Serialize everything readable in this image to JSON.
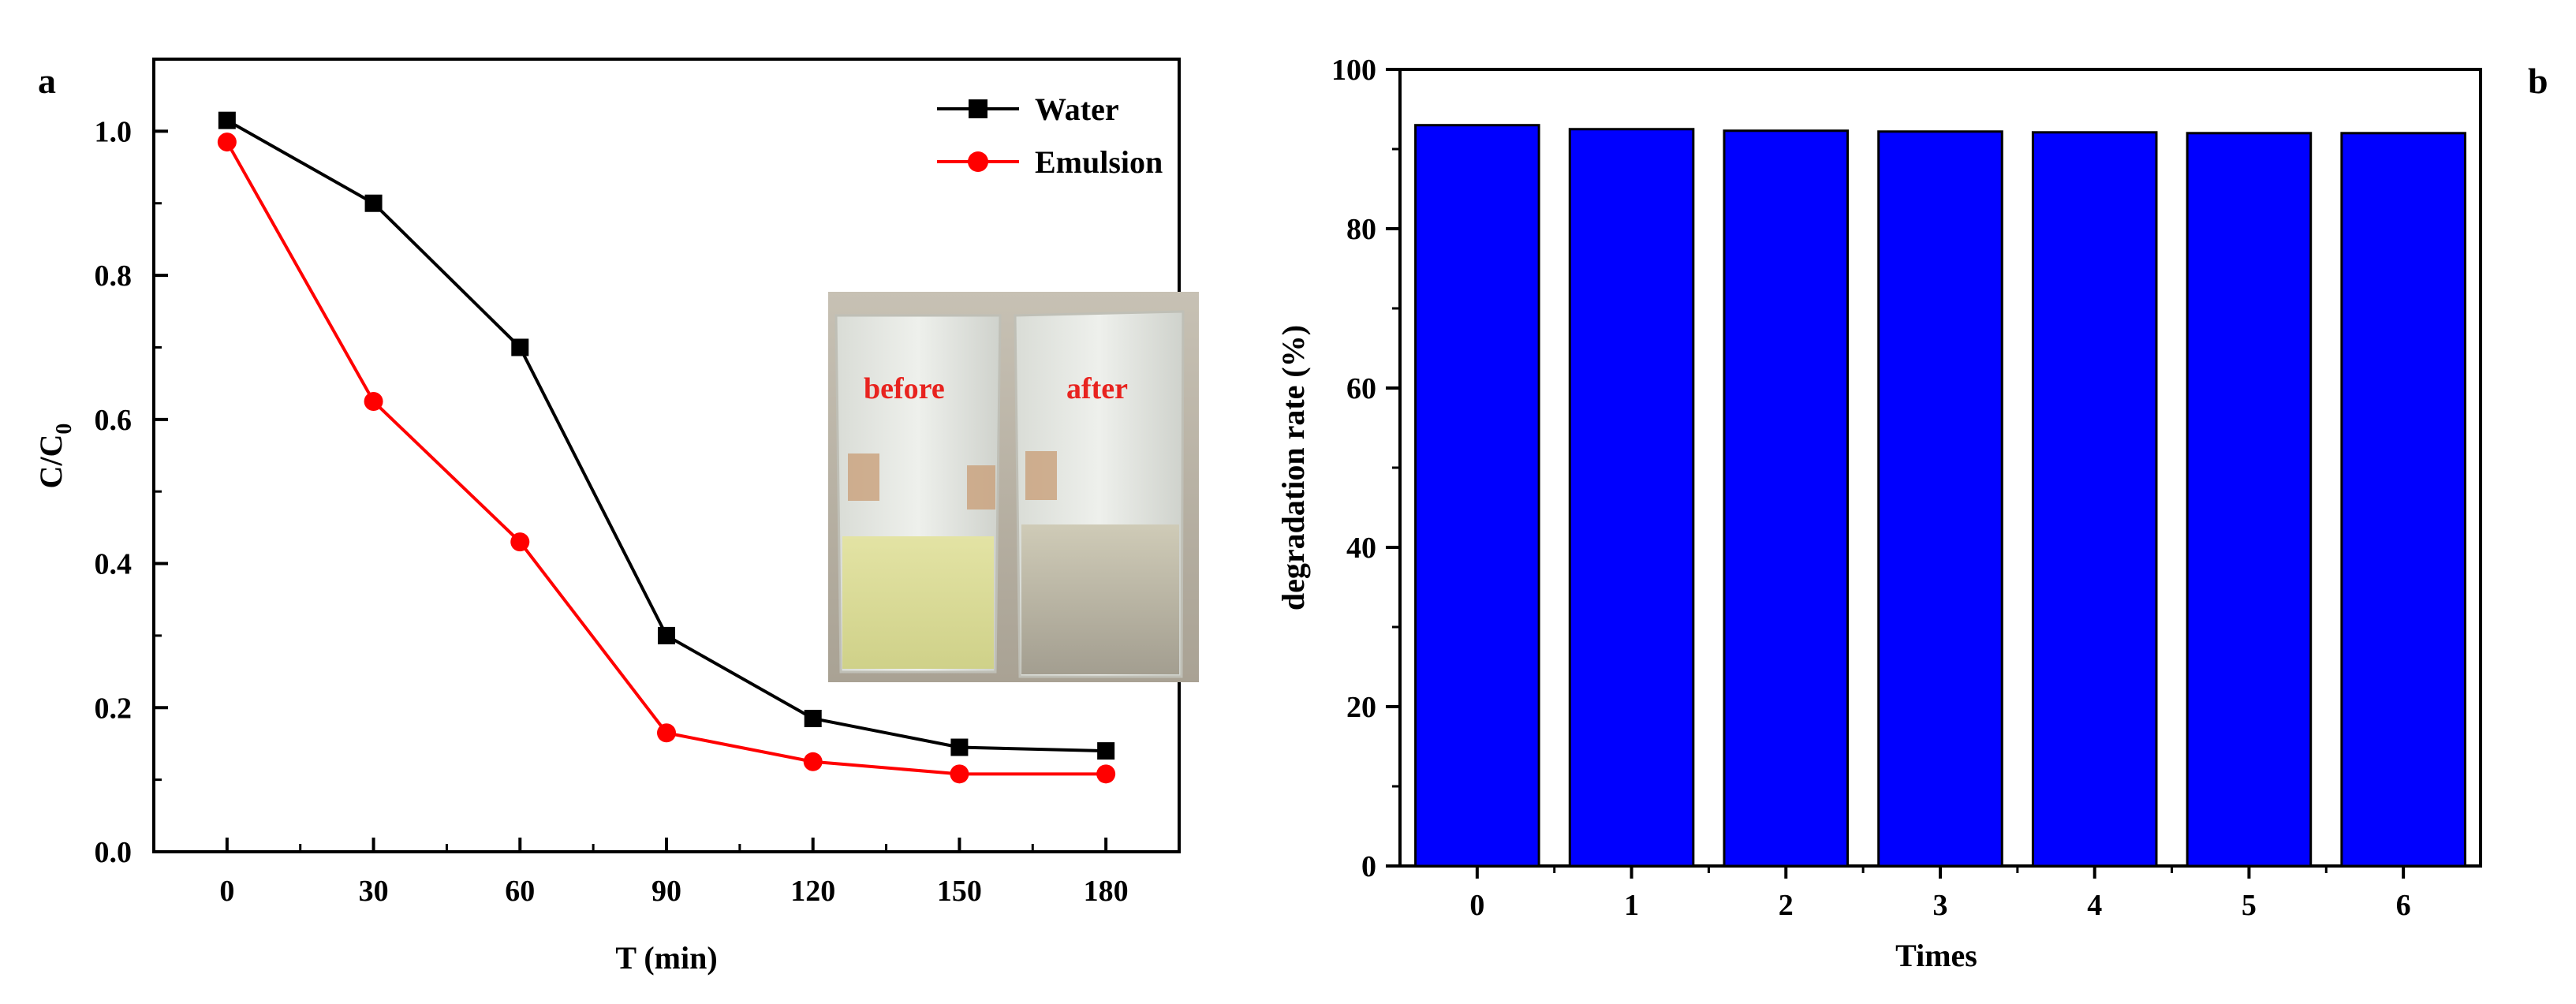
{
  "chart_data": [
    {
      "panel_label": "a",
      "type": "line",
      "x": [
        0,
        30,
        60,
        90,
        120,
        150,
        180
      ],
      "xlabel": "T (min)",
      "ylabel_main": "C/C",
      "ylabel_sub": "0",
      "xlim": [
        -15,
        195
      ],
      "ylim": [
        0.0,
        1.1
      ],
      "xticks": [
        "0",
        "30",
        "60",
        "90",
        "120",
        "150",
        "180"
      ],
      "yticks": [
        "0.0",
        "0.2",
        "0.4",
        "0.6",
        "0.8",
        "1.0"
      ],
      "legend_position": "top-right",
      "series": [
        {
          "name": "Water",
          "color": "#000000",
          "marker": "square",
          "values": [
            1.015,
            0.9,
            0.7,
            0.3,
            0.185,
            0.145,
            0.14
          ]
        },
        {
          "name": "Emulsion",
          "color": "#ff0000",
          "marker": "circle",
          "values": [
            0.985,
            0.625,
            0.43,
            0.165,
            0.125,
            0.108,
            0.108
          ]
        }
      ],
      "inset_photo": {
        "label_before": "before",
        "label_after": "after"
      }
    },
    {
      "panel_label": "b",
      "type": "bar",
      "categories": [
        "0",
        "1",
        "2",
        "3",
        "4",
        "5",
        "6"
      ],
      "values": [
        93.0,
        92.5,
        92.3,
        92.2,
        92.1,
        92.0,
        92.0
      ],
      "bar_color": "#0000ff",
      "xlabel": "Times",
      "ylabel": "degradation rate (%)",
      "ylim": [
        0,
        100
      ],
      "yticks": [
        "0",
        "20",
        "40",
        "60",
        "80",
        "100"
      ]
    }
  ]
}
